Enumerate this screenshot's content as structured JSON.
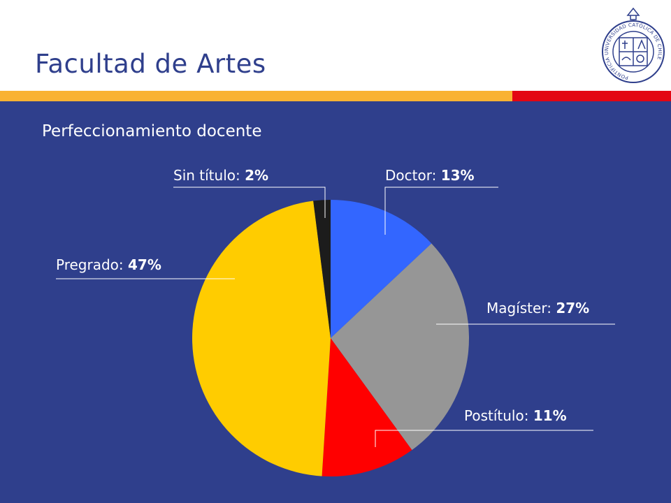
{
  "header": {
    "title": "Facultad de Artes",
    "logo_text": "PONTIFICIA UNIVERSIDAD CATÓLICA DE CHILE"
  },
  "colors": {
    "background": "#2f3f8c",
    "stripe_yellow": "#f9b233",
    "stripe_red": "#e30613"
  },
  "chart_data": {
    "type": "pie",
    "title": "Perfeccionamiento docente",
    "slices": [
      {
        "label": "Doctor",
        "value": 13,
        "value_text": "13%",
        "color": "#3366ff"
      },
      {
        "label": "Magíster",
        "value": 27,
        "value_text": "27%",
        "color": "#969696"
      },
      {
        "label": "Postítulo",
        "value": 11,
        "value_text": "11%",
        "color": "#ff0000"
      },
      {
        "label": "Pregrado",
        "value": 47,
        "value_text": "47%",
        "color": "#ffcc00"
      },
      {
        "label": "Sin título",
        "value": 2,
        "value_text": "2%",
        "color": "#1c1c1c"
      }
    ]
  }
}
